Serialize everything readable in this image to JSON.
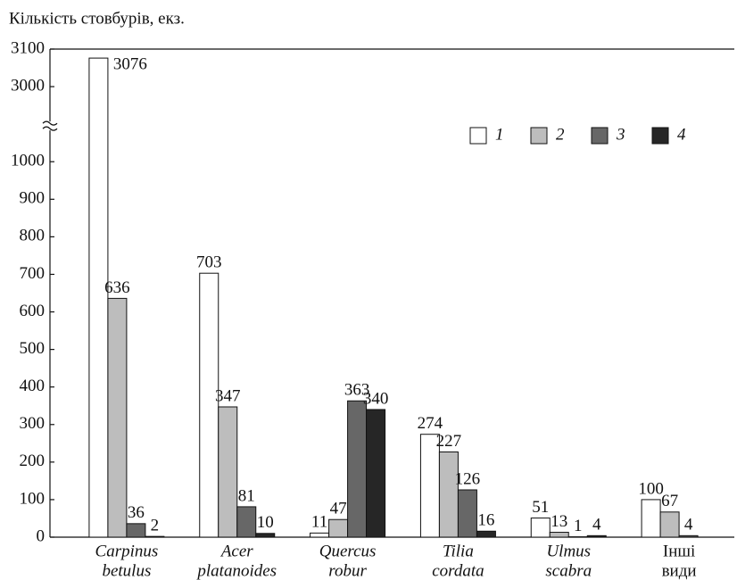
{
  "chart_data": {
    "type": "bar",
    "y_label": "Кількість стовбурів, екз.",
    "categories": [
      [
        "Carpinus",
        "betulus"
      ],
      [
        "Acer",
        "platanoides"
      ],
      [
        "Quercus",
        "robur"
      ],
      [
        "Tilia",
        "cordata"
      ],
      [
        "Ulmus",
        "scabra"
      ],
      [
        "Інші",
        "види"
      ]
    ],
    "italic_categories": [
      true,
      true,
      true,
      true,
      true,
      false
    ],
    "series": [
      {
        "name": "1",
        "color": "#ffffff",
        "values": [
          3076,
          703,
          11,
          274,
          51,
          100
        ]
      },
      {
        "name": "2",
        "color": "#bdbdbd",
        "values": [
          636,
          347,
          47,
          227,
          13,
          67
        ]
      },
      {
        "name": "3",
        "color": "#676767",
        "values": [
          36,
          81,
          363,
          126,
          1,
          4
        ]
      },
      {
        "name": "4",
        "color": "#262626",
        "values": [
          2,
          10,
          340,
          16,
          4,
          null
        ]
      }
    ],
    "ylim": [
      0,
      3100
    ],
    "ybreak": [
      1100,
      2900
    ],
    "yticks": [
      0,
      100,
      200,
      300,
      400,
      500,
      600,
      700,
      800,
      900,
      1000,
      3000,
      3100
    ],
    "legend": "upper right"
  }
}
